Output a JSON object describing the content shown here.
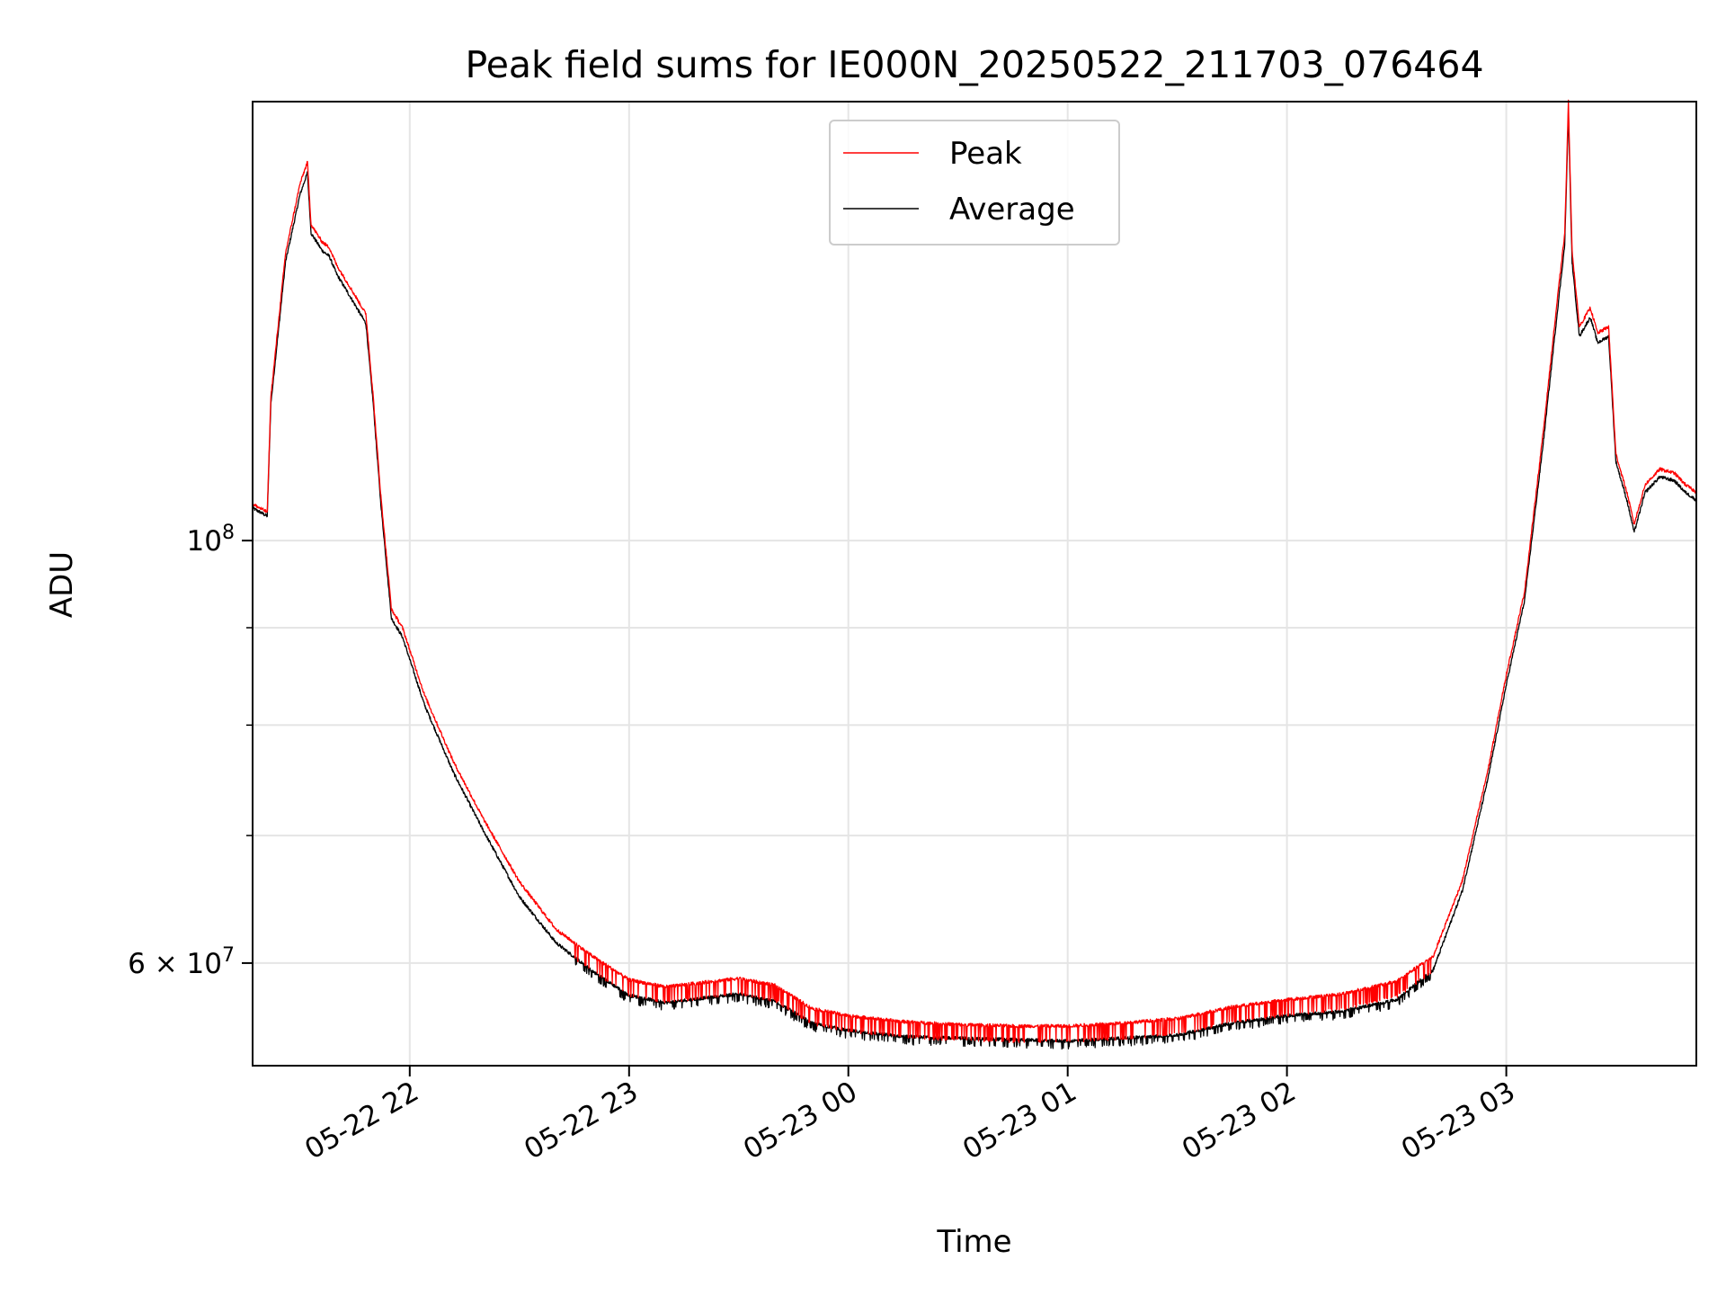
{
  "chart_data": {
    "type": "line",
    "title": "Peak field sums for IE000N_20250522_211703_076464",
    "xlabel": "Time",
    "ylabel": "ADU",
    "y_scale": "log",
    "x_range": [
      "05-22 21:17",
      "05-23 03:52"
    ],
    "ylim": [
      53000000,
      170000000
    ],
    "grid": true,
    "legend_position": "top-center",
    "x_ticks": [
      {
        "label": "05-22 22",
        "time": "05-22 22:00"
      },
      {
        "label": "05-22 23",
        "time": "05-22 23:00"
      },
      {
        "label": "05-23 00",
        "time": "05-23 00:00"
      },
      {
        "label": "05-23 01",
        "time": "05-23 01:00"
      },
      {
        "label": "05-23 02",
        "time": "05-23 02:00"
      },
      {
        "label": "05-23 03",
        "time": "05-23 03:00"
      }
    ],
    "y_major_ticks": [
      {
        "label_base": "10",
        "label_exp": "8",
        "value": 100000000
      },
      {
        "label_base": "6 × 10",
        "label_exp": "7",
        "value": 60000000
      }
    ],
    "y_minor_gridlines": [
      70000000,
      80000000,
      90000000
    ],
    "series": [
      {
        "name": "Average",
        "color": "#000000",
        "points": [
          [
            "05-22 21:17",
            104000000
          ],
          [
            "05-22 21:21",
            103000000
          ],
          [
            "05-22 21:22",
            118000000
          ],
          [
            "05-22 21:26",
            140000000
          ],
          [
            "05-22 21:30",
            152000000
          ],
          [
            "05-22 21:32",
            156000000
          ],
          [
            "05-22 21:33",
            145000000
          ],
          [
            "05-22 21:36",
            142000000
          ],
          [
            "05-22 21:38",
            141000000
          ],
          [
            "05-22 21:40",
            138000000
          ],
          [
            "05-22 21:44",
            134000000
          ],
          [
            "05-22 21:48",
            130000000
          ],
          [
            "05-22 21:50",
            118000000
          ],
          [
            "05-22 21:52",
            105000000
          ],
          [
            "05-22 21:55",
            91000000
          ],
          [
            "05-22 21:58",
            89000000
          ],
          [
            "05-22 22:04",
            82000000
          ],
          [
            "05-22 22:12",
            75500000
          ],
          [
            "05-22 22:20",
            70500000
          ],
          [
            "05-22 22:30",
            65000000
          ],
          [
            "05-22 22:40",
            61500000
          ],
          [
            "05-22 22:50",
            59400000
          ],
          [
            "05-22 23:00",
            57700000
          ],
          [
            "05-22 23:10",
            57200000
          ],
          [
            "05-22 23:20",
            57500000
          ],
          [
            "05-22 23:30",
            57800000
          ],
          [
            "05-22 23:40",
            57300000
          ],
          [
            "05-22 23:50",
            55800000
          ],
          [
            "05-23 00:00",
            55300000
          ],
          [
            "05-23 00:15",
            54900000
          ],
          [
            "05-23 00:30",
            54800000
          ],
          [
            "05-23 00:45",
            54700000
          ],
          [
            "05-23 01:00",
            54600000
          ],
          [
            "05-23 01:15",
            54800000
          ],
          [
            "05-23 01:30",
            55000000
          ],
          [
            "05-23 01:45",
            55800000
          ],
          [
            "05-23 02:00",
            56300000
          ],
          [
            "05-23 02:15",
            56600000
          ],
          [
            "05-23 02:30",
            57400000
          ],
          [
            "05-23 02:40",
            59500000
          ],
          [
            "05-23 02:48",
            65500000
          ],
          [
            "05-23 02:55",
            75000000
          ],
          [
            "05-23 03:00",
            84000000
          ],
          [
            "05-23 03:05",
            93000000
          ],
          [
            "05-23 03:10",
            112000000
          ],
          [
            "05-23 03:14",
            132000000
          ],
          [
            "05-23 03:16",
            143000000
          ],
          [
            "05-23 03:17",
            168000000
          ],
          [
            "05-23 03:18",
            140000000
          ],
          [
            "05-23 03:20",
            128000000
          ],
          [
            "05-23 03:23",
            131000000
          ],
          [
            "05-23 03:25",
            127000000
          ],
          [
            "05-23 03:28",
            128000000
          ],
          [
            "05-23 03:30",
            110000000
          ],
          [
            "05-23 03:33",
            105000000
          ],
          [
            "05-23 03:35",
            101000000
          ],
          [
            "05-23 03:38",
            106000000
          ],
          [
            "05-23 03:42",
            108000000
          ],
          [
            "05-23 03:46",
            107500000
          ],
          [
            "05-23 03:49",
            106000000
          ],
          [
            "05-23 03:52",
            105000000
          ]
        ]
      },
      {
        "name": "Peak",
        "color": "#ff0000",
        "points": [
          [
            "05-22 21:17",
            104500000
          ],
          [
            "05-22 21:21",
            103500000
          ],
          [
            "05-22 21:22",
            119000000
          ],
          [
            "05-22 21:26",
            141500000
          ],
          [
            "05-22 21:30",
            154000000
          ],
          [
            "05-22 21:32",
            158000000
          ],
          [
            "05-22 21:33",
            146500000
          ],
          [
            "05-22 21:36",
            143500000
          ],
          [
            "05-22 21:38",
            142500000
          ],
          [
            "05-22 21:40",
            139500000
          ],
          [
            "05-22 21:44",
            135500000
          ],
          [
            "05-22 21:48",
            131500000
          ],
          [
            "05-22 21:50",
            119000000
          ],
          [
            "05-22 21:52",
            106000000
          ],
          [
            "05-22 21:55",
            92000000
          ],
          [
            "05-22 21:58",
            90000000
          ],
          [
            "05-22 22:04",
            83000000
          ],
          [
            "05-22 22:12",
            76500000
          ],
          [
            "05-22 22:20",
            71500000
          ],
          [
            "05-22 22:30",
            66200000
          ],
          [
            "05-22 22:40",
            62500000
          ],
          [
            "05-22 22:50",
            60500000
          ],
          [
            "05-22 23:00",
            58800000
          ],
          [
            "05-22 23:10",
            58300000
          ],
          [
            "05-22 23:20",
            58600000
          ],
          [
            "05-22 23:30",
            58900000
          ],
          [
            "05-22 23:40",
            58400000
          ],
          [
            "05-22 23:50",
            56800000
          ],
          [
            "05-23 00:00",
            56300000
          ],
          [
            "05-23 00:15",
            55900000
          ],
          [
            "05-23 00:30",
            55700000
          ],
          [
            "05-23 00:45",
            55600000
          ],
          [
            "05-23 01:00",
            55600000
          ],
          [
            "05-23 01:15",
            55800000
          ],
          [
            "05-23 01:30",
            56100000
          ],
          [
            "05-23 01:45",
            56900000
          ],
          [
            "05-23 02:00",
            57400000
          ],
          [
            "05-23 02:15",
            57800000
          ],
          [
            "05-23 02:30",
            58700000
          ],
          [
            "05-23 02:40",
            60500000
          ],
          [
            "05-23 02:48",
            66300000
          ],
          [
            "05-23 02:55",
            75800000
          ],
          [
            "05-23 03:00",
            85000000
          ],
          [
            "05-23 03:05",
            94000000
          ],
          [
            "05-23 03:10",
            113500000
          ],
          [
            "05-23 03:14",
            134000000
          ],
          [
            "05-23 03:16",
            145000000
          ],
          [
            "05-23 03:17",
            170000000
          ],
          [
            "05-23 03:18",
            142000000
          ],
          [
            "05-23 03:20",
            129500000
          ],
          [
            "05-23 03:23",
            132500000
          ],
          [
            "05-23 03:25",
            128500000
          ],
          [
            "05-23 03:28",
            129500000
          ],
          [
            "05-23 03:30",
            111000000
          ],
          [
            "05-23 03:33",
            106000000
          ],
          [
            "05-23 03:35",
            102000000
          ],
          [
            "05-23 03:38",
            107000000
          ],
          [
            "05-23 03:42",
            109000000
          ],
          [
            "05-23 03:46",
            108500000
          ],
          [
            "05-23 03:49",
            107000000
          ],
          [
            "05-23 03:52",
            106000000
          ]
        ]
      }
    ]
  }
}
